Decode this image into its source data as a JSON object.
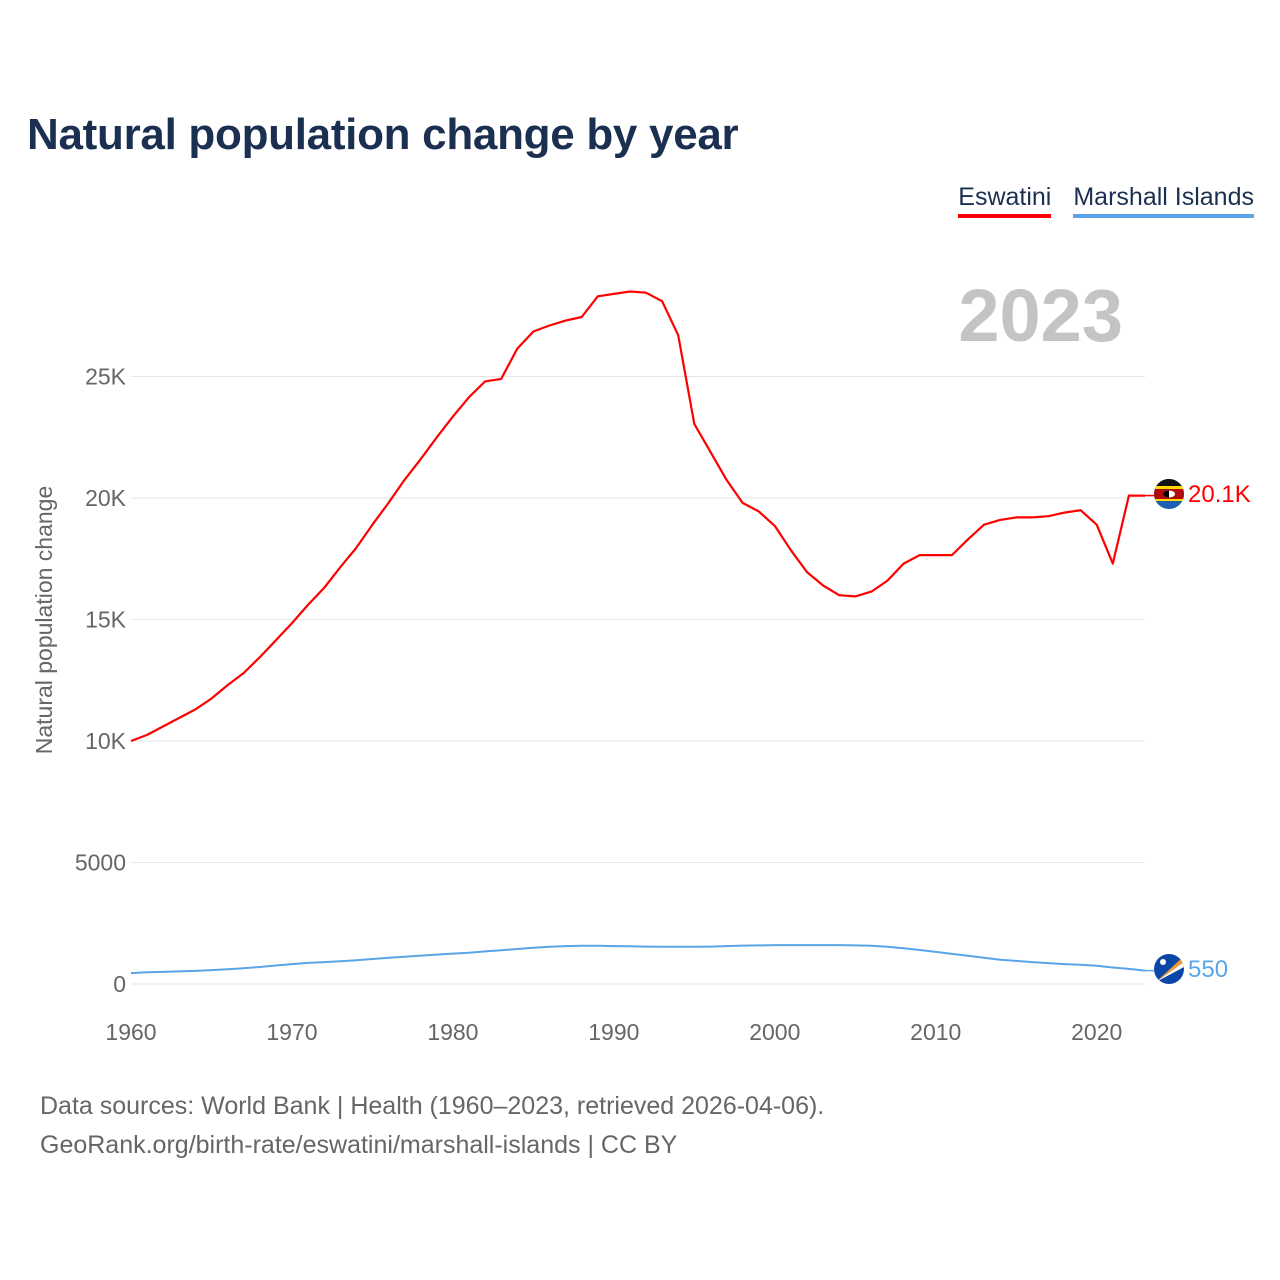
{
  "chart_data": {
    "type": "line",
    "title": "Natural population change by year",
    "ylabel": "Natural population change",
    "xlabel": "",
    "year_label": "2023",
    "xlim": [
      1960,
      2023
    ],
    "ylim": [
      0,
      30000
    ],
    "x_ticks": [
      1960,
      1970,
      1980,
      1990,
      2000,
      2010,
      2020
    ],
    "x_tick_labels": [
      "1960",
      "1970",
      "1980",
      "1990",
      "2000",
      "2010",
      "2020"
    ],
    "y_ticks": [
      0,
      5000,
      10000,
      15000,
      20000,
      25000
    ],
    "y_tick_labels": [
      "0",
      "5000",
      "10K",
      "15K",
      "20K",
      "25K"
    ],
    "grid": true,
    "legend_position": "top-right",
    "x": [
      1960,
      1961,
      1962,
      1963,
      1964,
      1965,
      1966,
      1967,
      1968,
      1969,
      1970,
      1971,
      1972,
      1973,
      1974,
      1975,
      1976,
      1977,
      1978,
      1979,
      1980,
      1981,
      1982,
      1983,
      1984,
      1985,
      1986,
      1987,
      1988,
      1989,
      1990,
      1991,
      1992,
      1993,
      1994,
      1995,
      1996,
      1997,
      1998,
      1999,
      2000,
      2001,
      2002,
      2003,
      2004,
      2005,
      2006,
      2007,
      2008,
      2009,
      2010,
      2011,
      2012,
      2013,
      2014,
      2015,
      2016,
      2017,
      2018,
      2019,
      2020,
      2021,
      2022,
      2023
    ],
    "series": [
      {
        "name": "Eswatini",
        "color": "#ff0000",
        "end_label": "20.1K",
        "flag": "eswatini-flag",
        "values": [
          10000,
          10250,
          10600,
          10950,
          11300,
          11750,
          12300,
          12800,
          13450,
          14150,
          14850,
          15600,
          16300,
          17150,
          17950,
          18900,
          19800,
          20750,
          21600,
          22500,
          23350,
          24150,
          24800,
          24900,
          26150,
          26850,
          27100,
          27300,
          27450,
          28300,
          28400,
          28500,
          28450,
          28100,
          26700,
          23050,
          21900,
          20750,
          19800,
          19450,
          18850,
          17850,
          16950,
          16400,
          16000,
          15950,
          16150,
          16600,
          17300,
          17650,
          17650,
          17650,
          18300,
          18900,
          19100,
          19200,
          19200,
          19250,
          19400,
          19500,
          18900,
          17300,
          20100,
          20100
        ]
      },
      {
        "name": "Marshall Islands",
        "color": "#5aa5e8",
        "end_label": "550",
        "flag": "marshall-islands-flag",
        "values": [
          450,
          480,
          500,
          520,
          540,
          570,
          610,
          650,
          700,
          760,
          820,
          870,
          900,
          940,
          980,
          1030,
          1080,
          1120,
          1170,
          1210,
          1250,
          1290,
          1340,
          1390,
          1440,
          1490,
          1530,
          1560,
          1570,
          1570,
          1560,
          1550,
          1540,
          1530,
          1530,
          1530,
          1540,
          1560,
          1580,
          1590,
          1600,
          1600,
          1600,
          1600,
          1600,
          1590,
          1570,
          1530,
          1470,
          1400,
          1320,
          1240,
          1160,
          1080,
          1000,
          950,
          900,
          860,
          820,
          790,
          750,
          680,
          620,
          550
        ]
      }
    ]
  },
  "footer": {
    "line1": "Data sources: World Bank | Health (1960–2023, retrieved 2026-04-06).",
    "line2": "GeoRank.org/birth-rate/eswatini/marshall-islands | CC BY"
  }
}
